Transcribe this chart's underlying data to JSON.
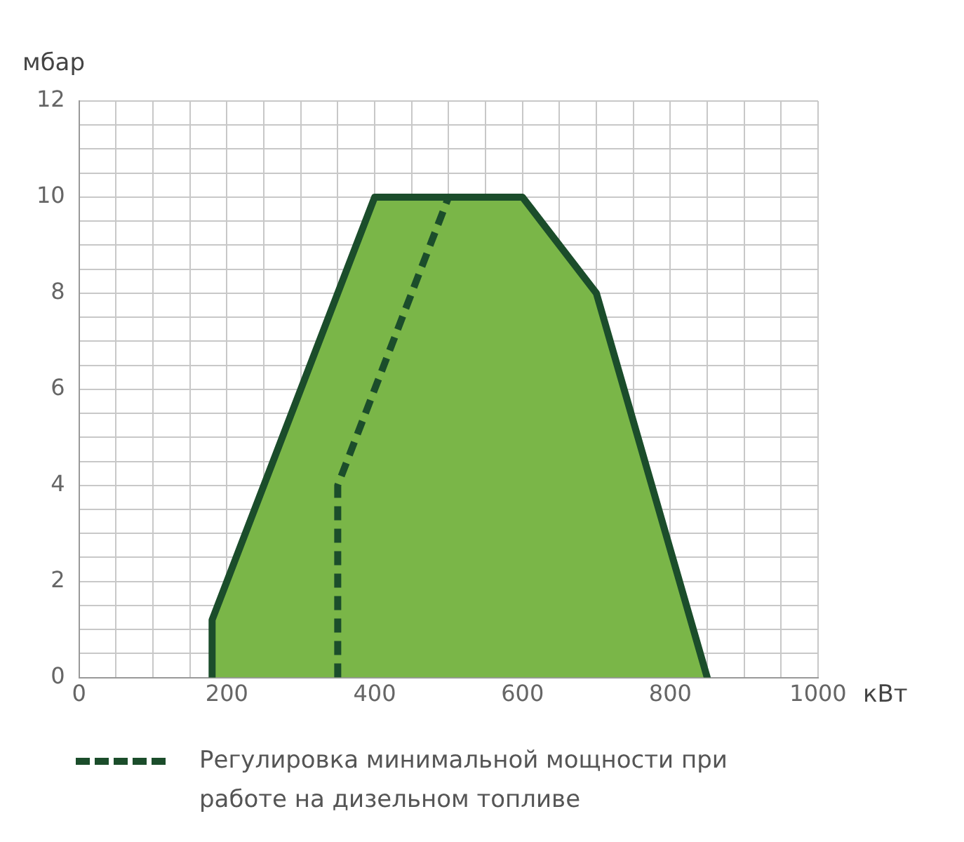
{
  "chart_data": {
    "type": "area",
    "xlabel": "кВт",
    "ylabel": "мбар",
    "xlim": [
      0,
      1000
    ],
    "xticks": [
      0,
      {
        "value": 50,
        "label": null
      },
      200,
      {
        "value": 100,
        "label": null
      },
      {
        "value": 150,
        "label": null
      },
      {
        "value": 250,
        "label": null
      },
      {
        "value": 300,
        "label": null
      },
      {
        "value": 350,
        "label": null
      },
      400,
      {
        "value": 450,
        "label": null
      },
      {
        "value": 500,
        "label": null
      },
      {
        "value": 550,
        "label": null
      },
      600,
      {
        "value": 650,
        "label": null
      },
      {
        "value": 700,
        "label": null
      },
      {
        "value": 750,
        "label": null
      },
      800,
      {
        "value": 850,
        "label": null
      },
      {
        "value": 900,
        "label": null
      },
      {
        "value": 950,
        "label": null
      },
      1000
    ],
    "ylim": [
      0,
      12
    ],
    "yticks": [
      0,
      {
        "value": 0.5,
        "label": null
      },
      {
        "value": 1,
        "label": null
      },
      {
        "value": 1.5,
        "label": null
      },
      2,
      {
        "value": 2.5,
        "label": null
      },
      {
        "value": 3,
        "label": null
      },
      {
        "value": 3.5,
        "label": null
      },
      4,
      {
        "value": 4.5,
        "label": null
      },
      {
        "value": 5,
        "label": null
      },
      {
        "value": 5.5,
        "label": null
      },
      6,
      {
        "value": 6.5,
        "label": null
      },
      {
        "value": 7,
        "label": null
      },
      {
        "value": 7.5,
        "label": null
      },
      8,
      {
        "value": 8.5,
        "label": null
      },
      {
        "value": 9,
        "label": null
      },
      {
        "value": 9.5,
        "label": null
      },
      10,
      {
        "value": 10.5,
        "label": null
      },
      {
        "value": 11,
        "label": null
      },
      {
        "value": 11.5,
        "label": null
      },
      12
    ],
    "grid": true,
    "legend": "bottom",
    "series": [
      {
        "color": "#7ab648",
        "x": [
          180,
          180,
          400,
          600,
          700,
          850
        ],
        "values": [
          0,
          1.2,
          10,
          10,
          8,
          0
        ]
      },
      {
        "type": "line",
        "name": "Регулировка минимальной мощности при работе на дизельном топливе",
        "color": "#1b4d2b",
        "line_style": "dashed",
        "x": [
          350,
          350,
          500
        ],
        "values": [
          0,
          4,
          10
        ]
      }
    ]
  }
}
